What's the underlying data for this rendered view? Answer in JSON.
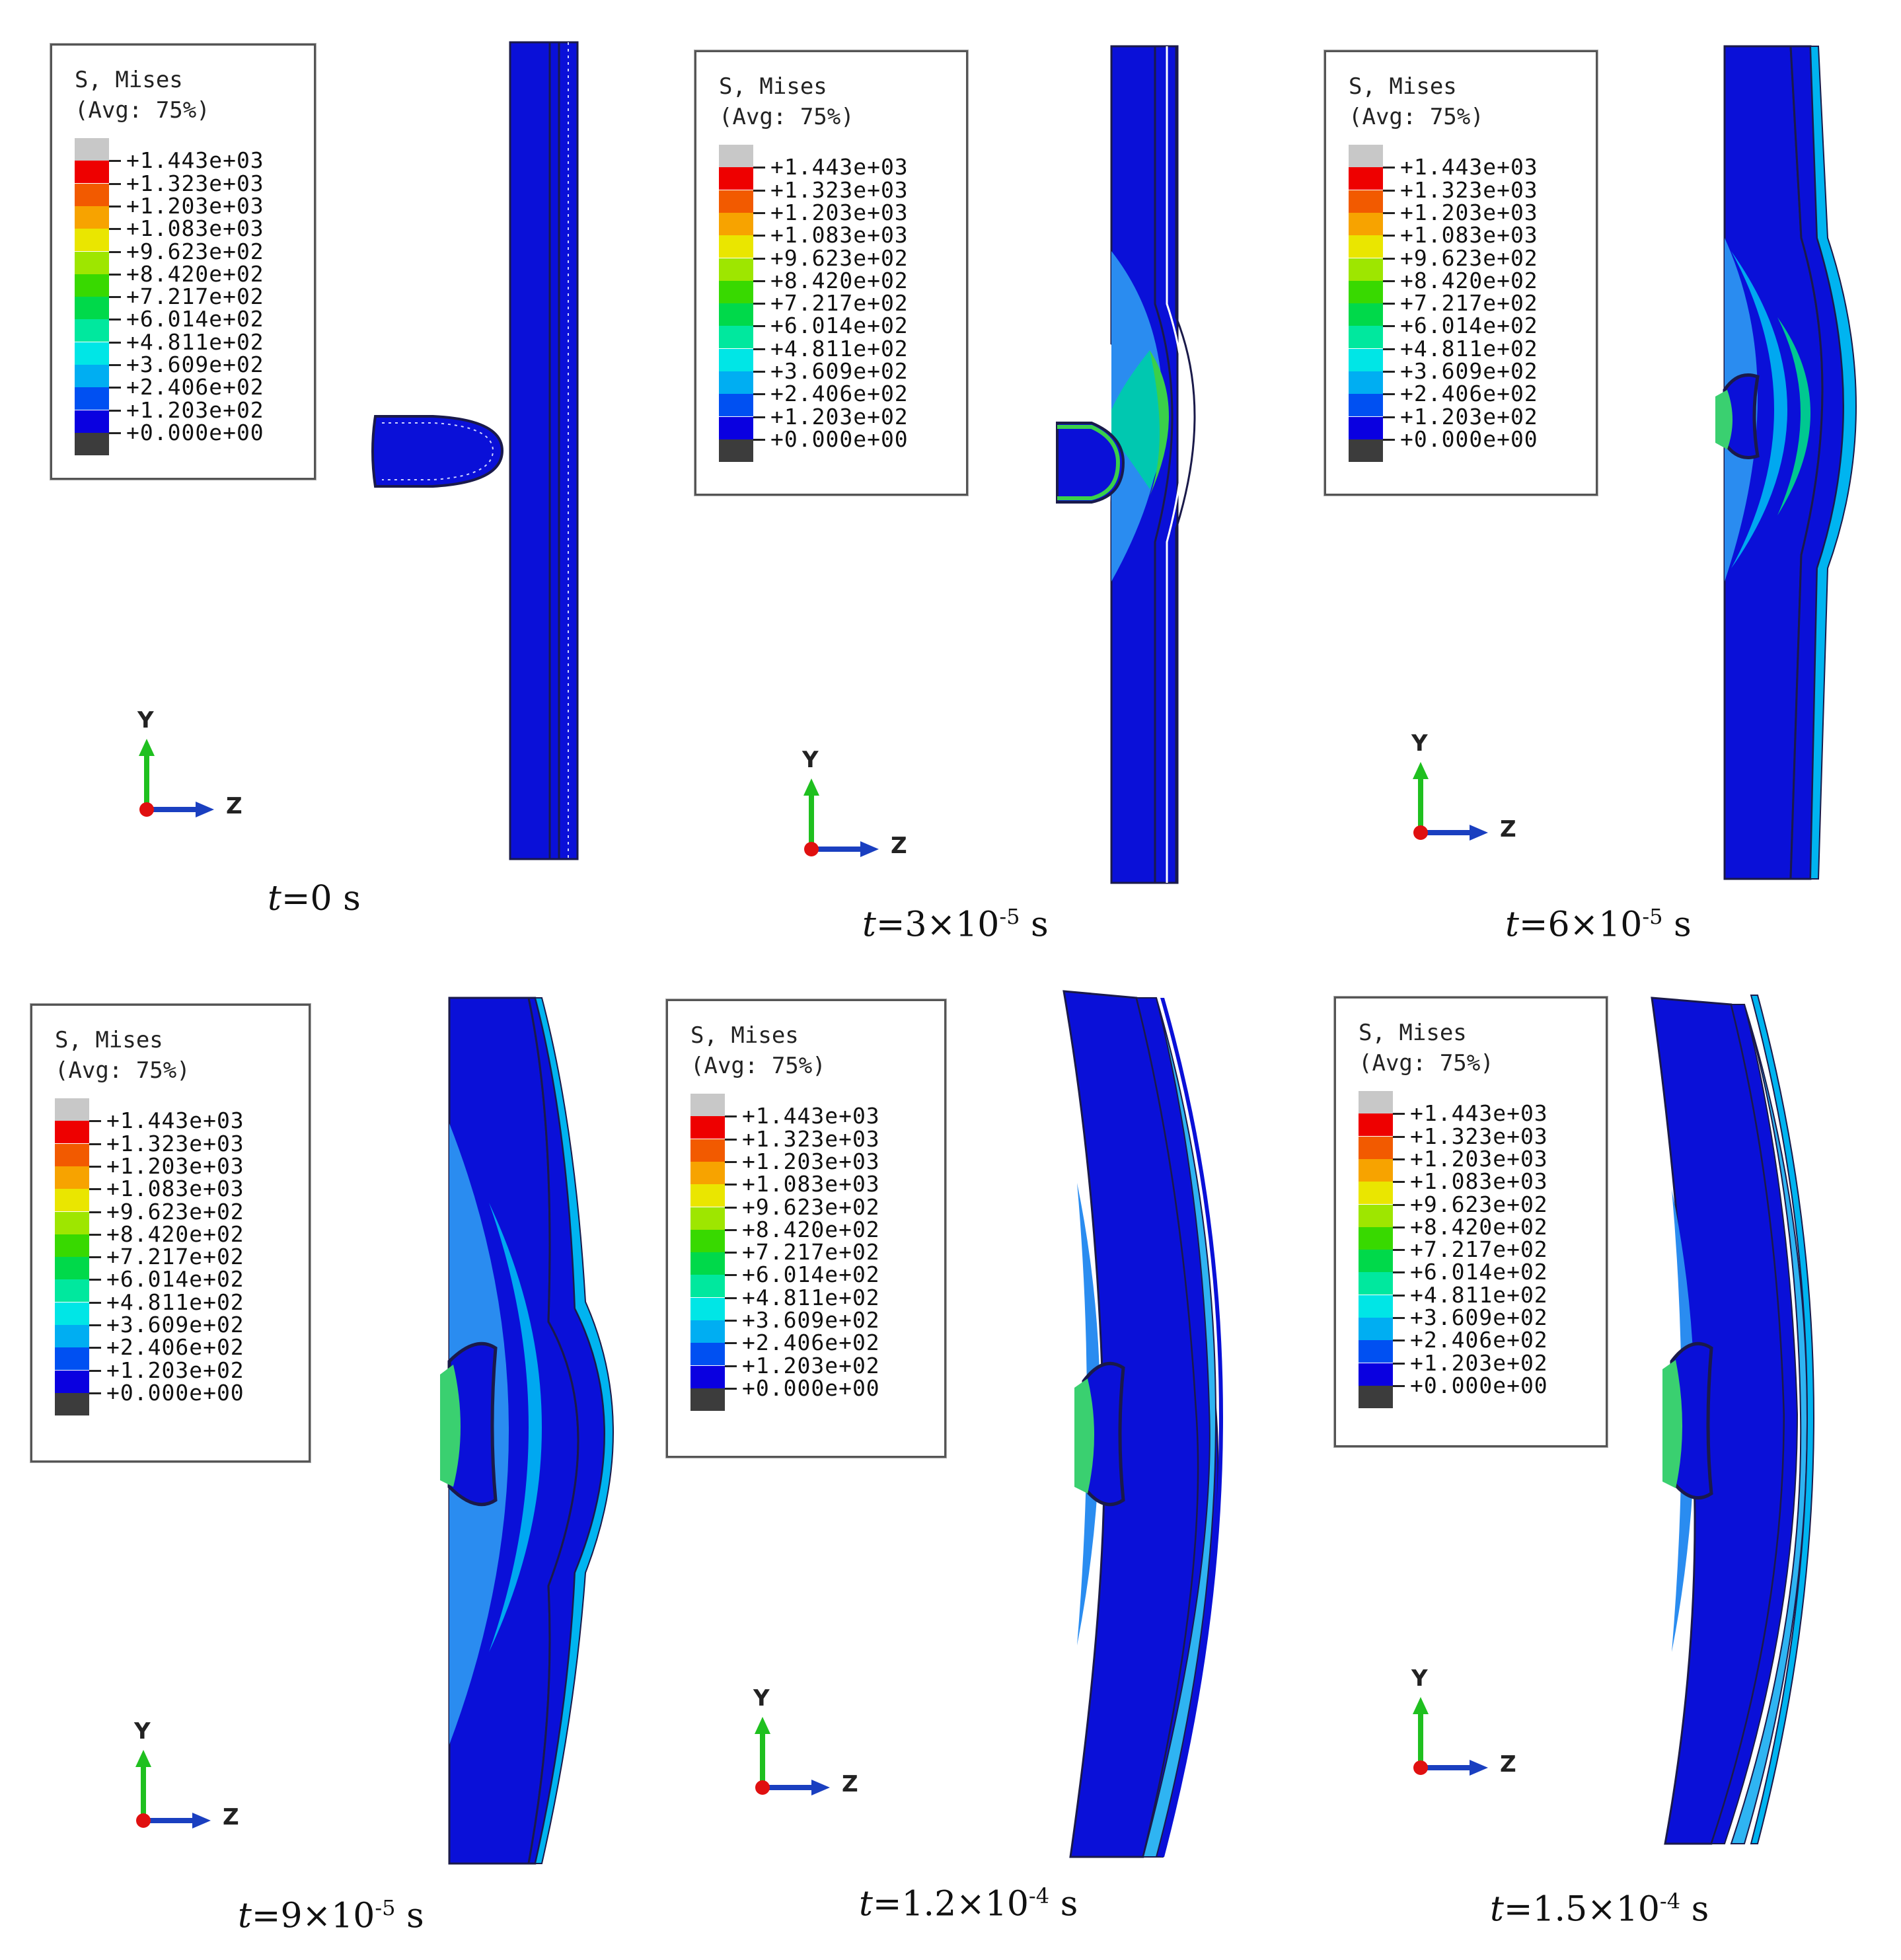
{
  "legend": {
    "title": "S, Mises",
    "subtitle": "(Avg: 75%)",
    "values": [
      "+1.443e+03",
      "+1.323e+03",
      "+1.203e+03",
      "+1.083e+03",
      "+9.623e+02",
      "+8.420e+02",
      "+7.217e+02",
      "+6.014e+02",
      "+4.811e+02",
      "+3.609e+02",
      "+2.406e+02",
      "+1.203e+02",
      "+0.000e+00"
    ],
    "colors": [
      "#c8c8c8",
      "#ee0000",
      "#f25a00",
      "#f7a300",
      "#eae600",
      "#9ee600",
      "#38d900",
      "#00d94a",
      "#00e89e",
      "#00e6e6",
      "#00aef2",
      "#0050f2",
      "#0a00e0",
      "#3c3c3c"
    ]
  },
  "axes": {
    "y": "Y",
    "z": "Z"
  },
  "panels": [
    {
      "t_prefix": "t",
      "t_value": "=0 s",
      "exp": ""
    },
    {
      "t_prefix": "t",
      "t_value": "=3×10",
      "exp": "-5",
      "unit": " s"
    },
    {
      "t_prefix": "t",
      "t_value": "=6×10",
      "exp": "-5",
      "unit": " s"
    },
    {
      "t_prefix": "t",
      "t_value": "=9×10",
      "exp": "-5",
      "unit": " s"
    },
    {
      "t_prefix": "t",
      "t_value": "=1.2×10",
      "exp": "-4",
      "unit": " s"
    },
    {
      "t_prefix": "t",
      "t_value": "=1.5×10",
      "exp": "-4",
      "unit": " s"
    }
  ]
}
